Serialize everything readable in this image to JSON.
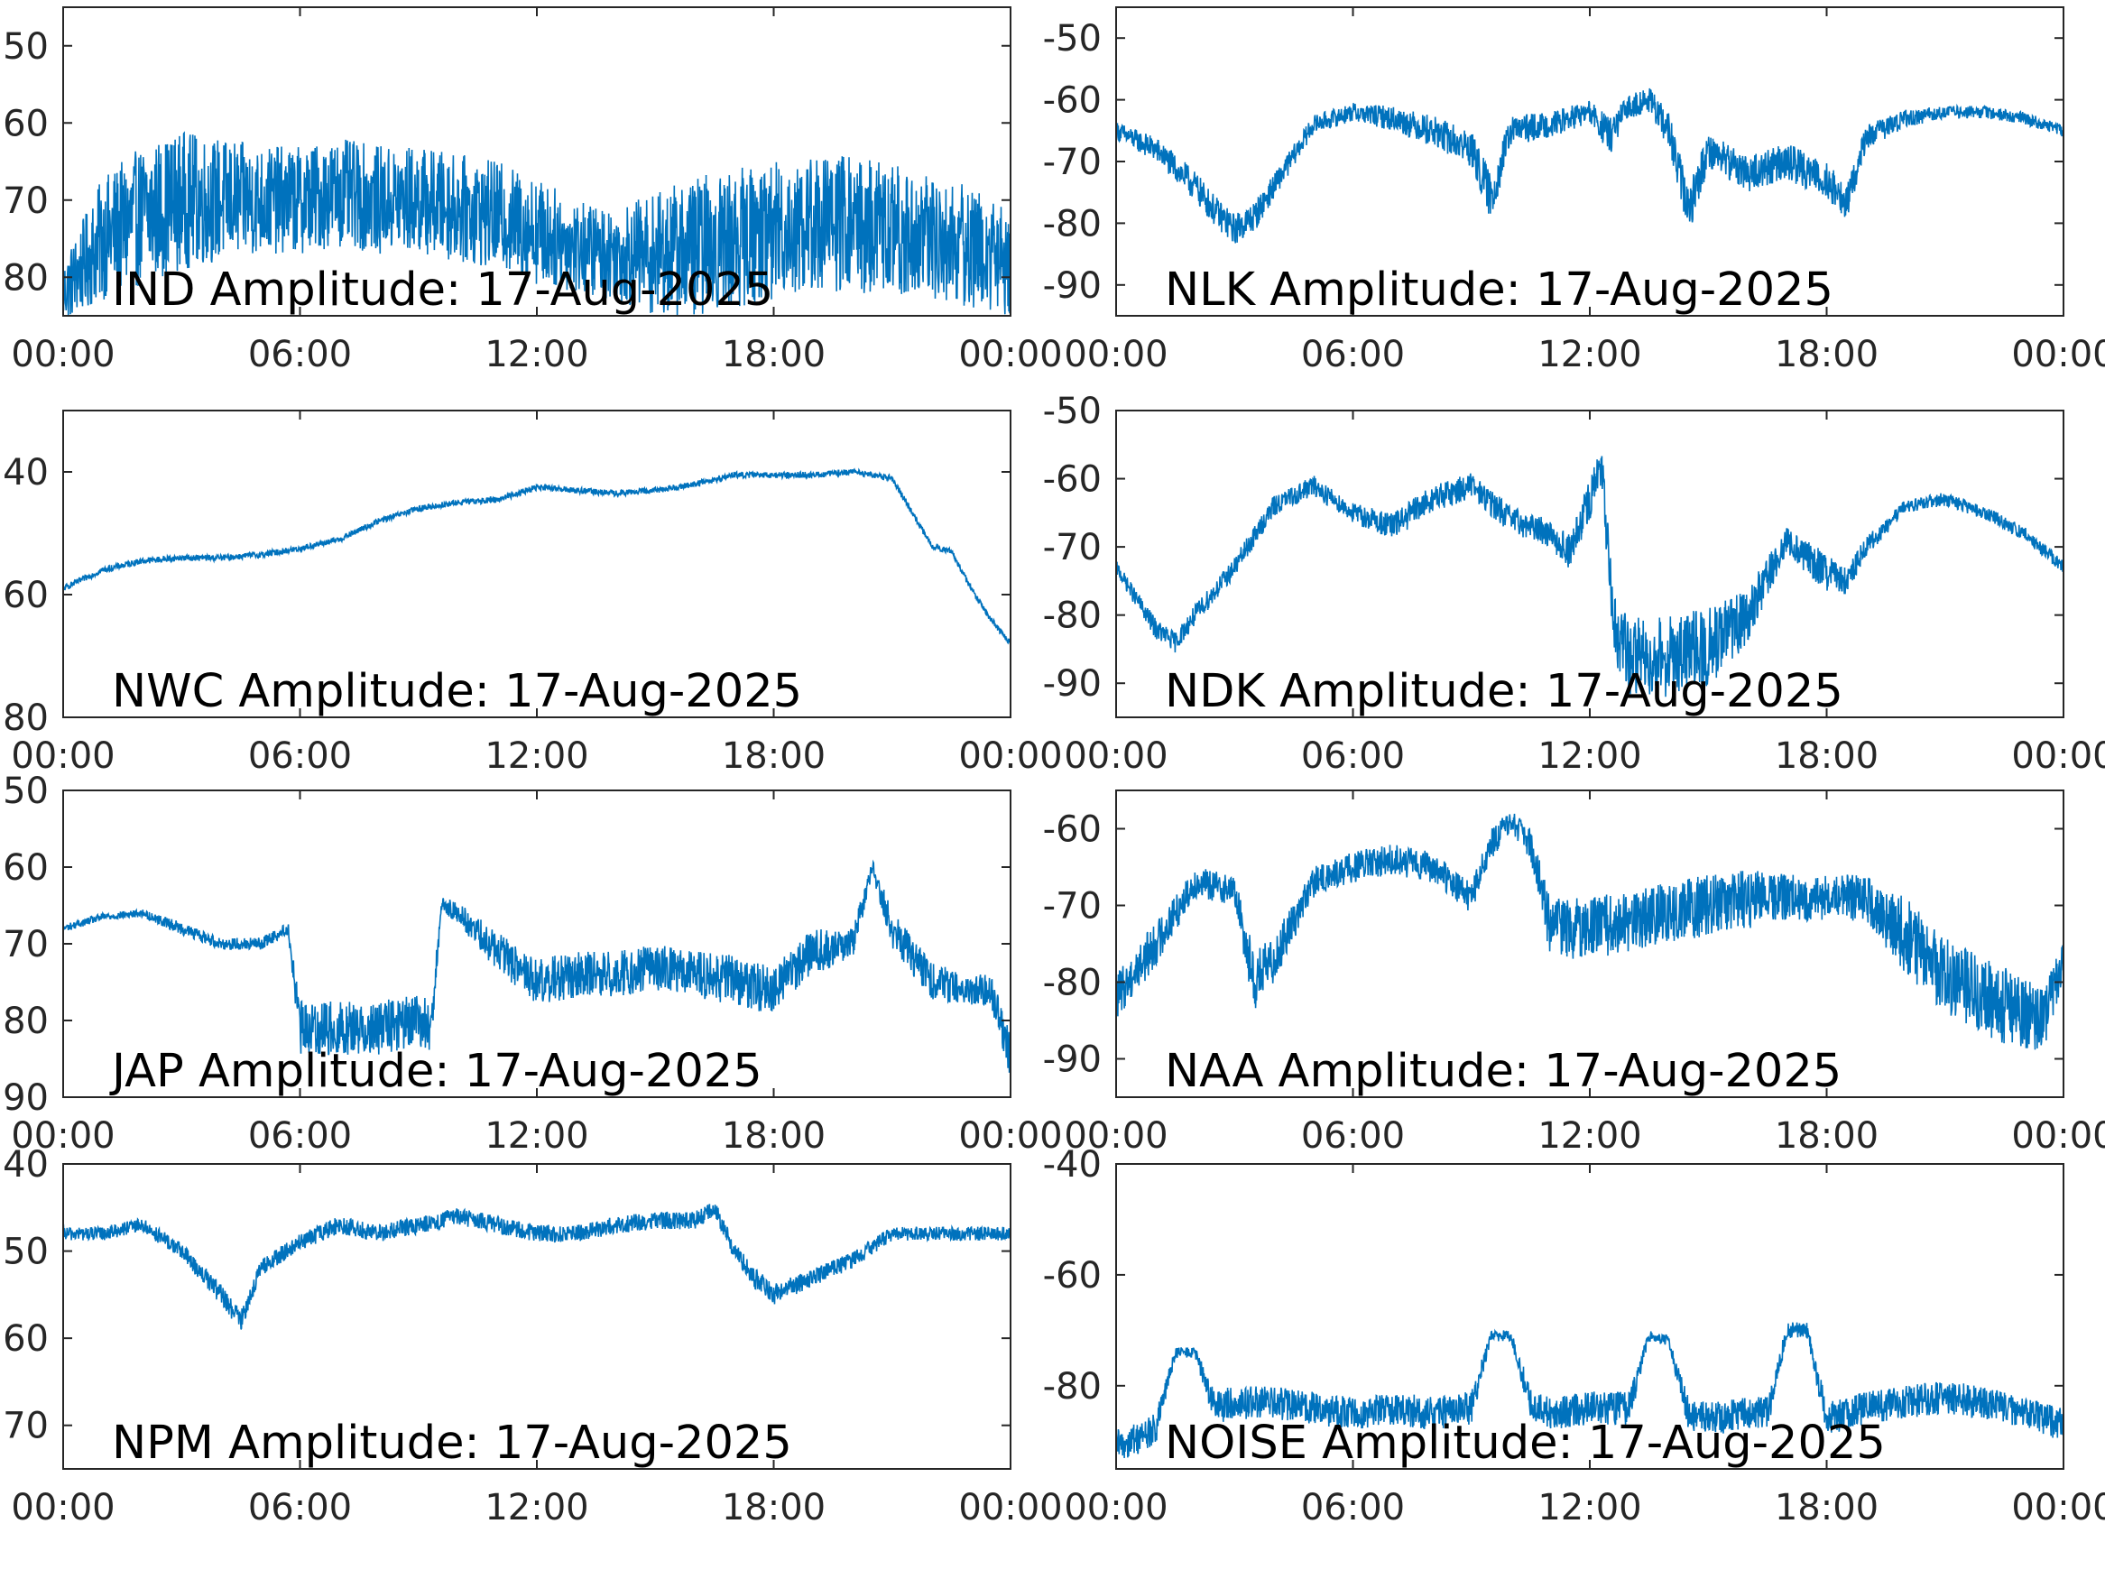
{
  "figure": {
    "background": "#ffffff",
    "line_color": "#0072bd",
    "axes_color": "#262626"
  },
  "chart_data": [
    {
      "type": "line",
      "title": "IND Amplitude: 17-Aug-2025",
      "xlabel": "",
      "ylabel": "",
      "xlim": [
        0,
        24
      ],
      "ylim": [
        -85,
        -45
      ],
      "xticks": [
        0,
        6,
        12,
        18,
        24
      ],
      "xtick_labels": [
        "00:00",
        "06:00",
        "12:00",
        "18:00",
        "00:00"
      ],
      "yticks": [
        -50,
        -60,
        -70,
        -80
      ],
      "ytick_labels": [
        "50",
        "60",
        "70",
        "80"
      ],
      "series": [
        {
          "x": [
            0,
            1,
            2,
            3,
            4,
            5,
            6,
            7,
            8,
            9,
            10,
            11,
            12,
            13,
            14,
            15,
            16,
            17,
            18,
            19,
            20,
            21,
            22,
            23,
            24
          ],
          "y": [
            -82,
            -75,
            -72,
            -70,
            -70,
            -70,
            -70,
            -69,
            -70,
            -70,
            -71,
            -72,
            -74,
            -76,
            -77,
            -77,
            -76,
            -75,
            -74,
            -73,
            -73,
            -74,
            -75,
            -76,
            -78
          ],
          "spread": [
            4,
            8,
            9,
            9,
            8,
            7,
            7,
            7,
            7,
            7,
            7,
            7,
            7,
            6,
            6,
            8,
            9,
            9,
            9,
            9,
            9,
            9,
            8,
            8,
            7
          ]
        }
      ]
    },
    {
      "type": "line",
      "title": "NLK Amplitude: 17-Aug-2025",
      "xlabel": "",
      "ylabel": "",
      "xlim": [
        0,
        24
      ],
      "ylim": [
        -95,
        -45
      ],
      "xticks": [
        0,
        6,
        12,
        18,
        24
      ],
      "xtick_labels": [
        "00:00",
        "06:00",
        "12:00",
        "18:00",
        "00:00"
      ],
      "yticks": [
        -50,
        -60,
        -70,
        -80,
        -90
      ],
      "ytick_labels": [
        "-50",
        "-60",
        "-70",
        "-80",
        "-90"
      ],
      "series": [
        {
          "x": [
            0,
            1,
            2,
            2.5,
            3,
            3.5,
            4,
            5,
            6,
            7,
            8,
            9,
            9.5,
            10,
            11,
            12,
            12.5,
            13,
            13.5,
            14,
            14.5,
            15,
            16,
            17,
            18,
            18.5,
            19,
            20,
            21,
            22,
            23,
            24
          ],
          "y": [
            -65,
            -68,
            -74,
            -78,
            -81,
            -79,
            -74,
            -64,
            -62,
            -63,
            -65,
            -68,
            -76,
            -65,
            -64,
            -62,
            -66,
            -61,
            -60,
            -65,
            -78,
            -68,
            -72,
            -70,
            -73,
            -77,
            -66,
            -63,
            -62,
            -62,
            -63,
            -65
          ],
          "spread": [
            1.5,
            2,
            2.5,
            2.5,
            2.5,
            2.5,
            2,
            1.5,
            1.5,
            2,
            2.5,
            3,
            4,
            2.5,
            2,
            2,
            3,
            2,
            2,
            3,
            4,
            3,
            3,
            3,
            3,
            3,
            2,
            1.5,
            1,
            1,
            1,
            1
          ]
        }
      ]
    },
    {
      "type": "line",
      "title": "NWC Amplitude: 17-Aug-2025",
      "xlabel": "",
      "ylabel": "",
      "xlim": [
        0,
        24
      ],
      "ylim": [
        -80,
        -30
      ],
      "xticks": [
        0,
        6,
        12,
        18,
        24
      ],
      "xtick_labels": [
        "00:00",
        "06:00",
        "12:00",
        "18:00",
        "00:00"
      ],
      "yticks": [
        -40,
        -60,
        -80
      ],
      "ytick_labels": [
        "40",
        "60",
        "80"
      ],
      "series": [
        {
          "x": [
            0,
            1,
            2,
            3,
            4,
            5,
            6,
            7,
            8,
            9,
            10,
            11,
            12,
            13,
            14,
            15,
            16,
            17,
            18,
            19,
            20,
            21,
            22,
            22.5,
            23,
            23.5,
            24
          ],
          "y": [
            -59,
            -56,
            -54.5,
            -54,
            -54,
            -53.5,
            -52.5,
            -51,
            -48,
            -46,
            -45,
            -44.5,
            -42.5,
            -43,
            -43.5,
            -43,
            -42,
            -40.5,
            -40.5,
            -40.5,
            -40,
            -41,
            -52,
            -53,
            -59,
            -64,
            -68
          ],
          "spread": [
            0.5,
            0.5,
            0.5,
            0.5,
            0.5,
            0.5,
            0.5,
            0.5,
            0.5,
            0.5,
            0.5,
            0.5,
            0.5,
            0.5,
            0.5,
            0.5,
            0.5,
            0.5,
            0.5,
            0.5,
            0.5,
            0.5,
            0.5,
            0.5,
            0.5,
            0.5,
            0.5
          ]
        }
      ]
    },
    {
      "type": "line",
      "title": "NDK Amplitude: 17-Aug-2025",
      "xlabel": "",
      "ylabel": "",
      "xlim": [
        0,
        24
      ],
      "ylim": [
        -95,
        -50
      ],
      "xticks": [
        0,
        6,
        12,
        18,
        24
      ],
      "xtick_labels": [
        "00:00",
        "06:00",
        "12:00",
        "18:00",
        "00:00"
      ],
      "yticks": [
        -50,
        -60,
        -70,
        -80,
        -90
      ],
      "ytick_labels": [
        "-50",
        "-60",
        "-70",
        "-80",
        "-90"
      ],
      "series": [
        {
          "x": [
            0,
            1,
            1.5,
            2,
            3,
            4,
            5,
            6,
            7,
            8,
            9,
            10,
            11,
            11.5,
            12,
            12.3,
            12.6,
            13,
            14,
            15,
            16,
            17,
            18,
            18.5,
            19,
            20,
            21,
            22,
            23,
            24
          ],
          "y": [
            -73,
            -82,
            -84,
            -80,
            -73,
            -64,
            -61,
            -65,
            -67,
            -63,
            -61,
            -66,
            -68,
            -71,
            -63,
            -58,
            -82,
            -86,
            -86,
            -85,
            -80,
            -69,
            -74,
            -75,
            -70,
            -64,
            -63,
            -65,
            -68,
            -73
          ],
          "spread": [
            1,
            1.5,
            1.5,
            1.5,
            1.5,
            1.5,
            1.5,
            1.5,
            2,
            2,
            2,
            2,
            2,
            3,
            3,
            3,
            5,
            6,
            6,
            6,
            4,
            2,
            3,
            2,
            1.5,
            1,
            1,
            1,
            1,
            1
          ]
        }
      ]
    },
    {
      "type": "line",
      "title": "JAP Amplitude: 17-Aug-2025",
      "xlabel": "",
      "ylabel": "",
      "xlim": [
        0,
        24
      ],
      "ylim": [
        -90,
        -50
      ],
      "xticks": [
        0,
        6,
        12,
        18,
        24
      ],
      "xtick_labels": [
        "00:00",
        "06:00",
        "12:00",
        "18:00",
        "00:00"
      ],
      "yticks": [
        -50,
        -60,
        -70,
        -80,
        -90
      ],
      "ytick_labels": [
        "50",
        "60",
        "70",
        "80",
        "90"
      ],
      "series": [
        {
          "x": [
            0,
            1,
            2,
            3,
            4,
            5,
            5.7,
            6,
            7,
            8,
            9,
            9.3,
            9.6,
            10,
            11,
            12,
            13,
            14,
            15,
            16,
            17,
            18,
            19,
            20,
            20.5,
            21,
            22,
            23,
            23.5,
            24
          ],
          "y": [
            -68,
            -66.5,
            -66,
            -68,
            -70,
            -70,
            -68,
            -81,
            -81,
            -81,
            -80,
            -81,
            -65,
            -66,
            -71,
            -75,
            -74,
            -74,
            -73,
            -74,
            -75,
            -76,
            -71,
            -70,
            -60,
            -68,
            -75,
            -76,
            -76,
            -85
          ],
          "spread": [
            0.5,
            0.5,
            0.5,
            0.8,
            0.8,
            0.8,
            0.8,
            3.5,
            3.5,
            3.5,
            3.5,
            3.5,
            1,
            1.5,
            2.5,
            3,
            3,
            3,
            3,
            3,
            3.5,
            3,
            3,
            2,
            1,
            2.5,
            2.5,
            2,
            2,
            3.5
          ]
        }
      ]
    },
    {
      "type": "line",
      "title": "NAA Amplitude: 17-Aug-2025",
      "xlabel": "",
      "ylabel": "",
      "xlim": [
        0,
        24
      ],
      "ylim": [
        -95,
        -55
      ],
      "xticks": [
        0,
        6,
        12,
        18,
        24
      ],
      "xtick_labels": [
        "00:00",
        "06:00",
        "12:00",
        "18:00",
        "00:00"
      ],
      "yticks": [
        -60,
        -70,
        -80,
        -90
      ],
      "ytick_labels": [
        "-60",
        "-70",
        "-80",
        "-90"
      ],
      "series": [
        {
          "x": [
            0,
            1,
            2,
            3,
            3.5,
            4,
            5,
            6,
            7,
            8,
            9,
            9.5,
            10,
            10.5,
            11,
            12,
            13,
            14,
            15,
            16,
            17,
            18,
            19,
            20,
            21,
            22,
            23,
            23.5,
            24
          ],
          "y": [
            -82,
            -75,
            -67,
            -68,
            -80,
            -77,
            -67,
            -65,
            -64,
            -65,
            -69,
            -62,
            -59,
            -62,
            -73,
            -73,
            -72,
            -71,
            -70,
            -69,
            -69,
            -69,
            -69,
            -74,
            -79,
            -82,
            -84,
            -85,
            -77
          ],
          "spread": [
            3,
            3,
            2,
            2,
            4,
            3,
            2,
            2,
            2,
            2,
            2,
            2,
            1.5,
            2,
            4,
            4,
            4,
            4,
            4,
            4,
            3,
            3,
            3,
            5,
            5,
            5,
            5,
            4,
            3
          ]
        }
      ]
    },
    {
      "type": "line",
      "title": "NPM Amplitude: 17-Aug-2025",
      "xlabel": "",
      "ylabel": "",
      "xlim": [
        0,
        24
      ],
      "ylim": [
        -75,
        -40
      ],
      "xticks": [
        0,
        6,
        12,
        18,
        24
      ],
      "xtick_labels": [
        "00:00",
        "06:00",
        "12:00",
        "18:00",
        "00:00"
      ],
      "yticks": [
        -40,
        -50,
        -60,
        -70
      ],
      "ytick_labels": [
        "40",
        "50",
        "60",
        "70"
      ],
      "series": [
        {
          "x": [
            0,
            1,
            2,
            3,
            4,
            4.5,
            5,
            6,
            7,
            8,
            9,
            10,
            11,
            12,
            13,
            14,
            15,
            16,
            16.5,
            17,
            17.5,
            18,
            19,
            20,
            21,
            22,
            23,
            24
          ],
          "y": [
            -48,
            -48,
            -47,
            -50,
            -55,
            -58,
            -52,
            -49,
            -47,
            -48,
            -47,
            -46,
            -47,
            -48,
            -48,
            -47,
            -46.5,
            -46.5,
            -45,
            -50,
            -53,
            -55,
            -53,
            -51,
            -48,
            -48,
            -48,
            -48
          ],
          "spread": [
            0.8,
            0.8,
            0.8,
            1,
            1.2,
            1.2,
            1,
            1,
            1,
            1,
            1,
            1,
            1,
            1,
            1,
            1,
            1,
            1,
            1,
            1,
            1.2,
            1.2,
            1,
            1,
            0.8,
            0.8,
            0.8,
            0.8
          ]
        }
      ]
    },
    {
      "type": "line",
      "title": "NOISE Amplitude: 17-Aug-2025",
      "xlabel": "",
      "ylabel": "",
      "xlim": [
        0,
        24
      ],
      "ylim": [
        -95,
        -40
      ],
      "xticks": [
        0,
        6,
        12,
        18,
        24
      ],
      "xtick_labels": [
        "00:00",
        "06:00",
        "12:00",
        "18:00",
        "00:00"
      ],
      "yticks": [
        -40,
        -60,
        -80
      ],
      "ytick_labels": [
        "-40",
        "-60",
        "-80"
      ],
      "series": [
        {
          "x": [
            0,
            1,
            1.5,
            2,
            2.5,
            3,
            4,
            5,
            6,
            7,
            8,
            9,
            9.5,
            10,
            10.5,
            11,
            12,
            13,
            13.5,
            14,
            14.5,
            15,
            16,
            16.5,
            17,
            17.5,
            18,
            19,
            20,
            21,
            22,
            23,
            24
          ],
          "y": [
            -91,
            -88,
            -74,
            -74,
            -84,
            -83,
            -83,
            -84,
            -85,
            -84,
            -85,
            -84,
            -71,
            -71,
            -83,
            -85,
            -84,
            -84,
            -71,
            -72,
            -85,
            -86,
            -85,
            -85,
            -70,
            -70,
            -86,
            -84,
            -83,
            -82,
            -83,
            -85,
            -87
          ],
          "spread": [
            3,
            3,
            1,
            1,
            3,
            3,
            3,
            3,
            3,
            3,
            3,
            3,
            1,
            1,
            3,
            3,
            3,
            3,
            1,
            1,
            3,
            3,
            3,
            3,
            1.5,
            1.5,
            3,
            3,
            3,
            3,
            3,
            3,
            3
          ]
        }
      ]
    }
  ]
}
